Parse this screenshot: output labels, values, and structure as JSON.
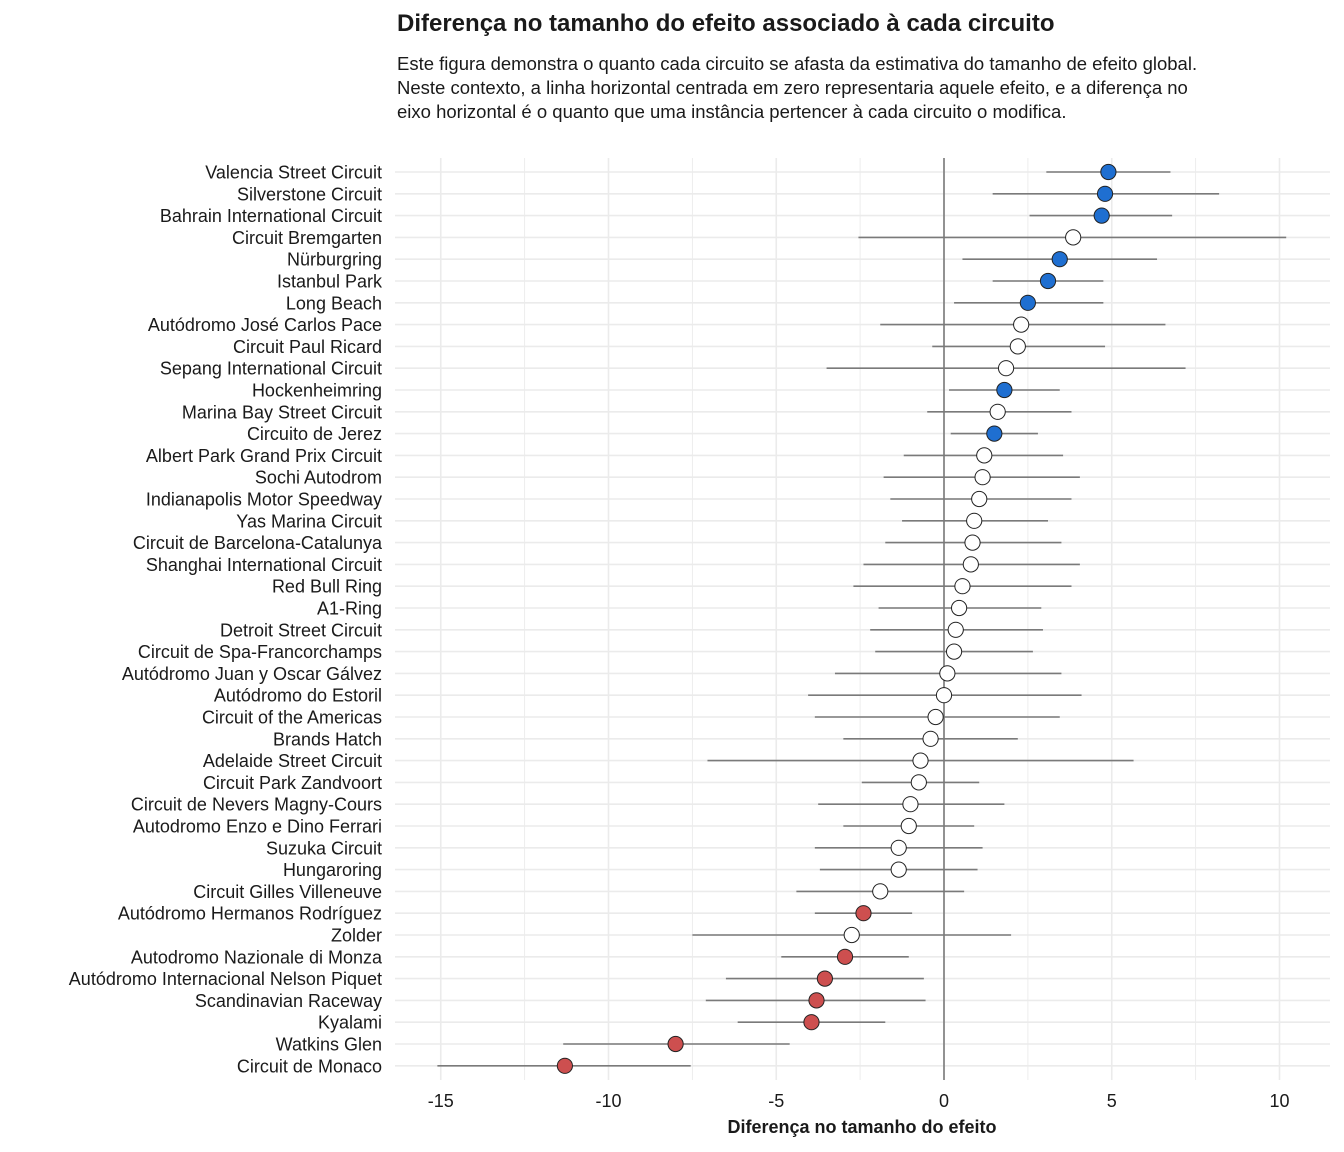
{
  "chart_data": {
    "type": "scatter",
    "title": "Diferença no tamanho do efeito associado à cada circuito",
    "subtitle": "Este figura demonstra o quanto cada circuito se afasta da estimativa do tamanho de efeito global. Neste contexto, a linha horizontal centrada em zero representaria aquele efeito, e a diferença no eixo horizontal é o quanto que uma instância pertencer à cada circuito o modifica.",
    "xlabel": "Diferença no tamanho do efeito",
    "ylabel": "",
    "xlim": [
      -16.5,
      11.5
    ],
    "xticks": [
      -15,
      -10,
      -5,
      0,
      5,
      10
    ],
    "reference_line_x": 0,
    "grid": true,
    "colors": {
      "positive": "#1f6fd1",
      "negative": "#cd4f4f",
      "neutral": "#ffffff",
      "interval": "#7a7a7a",
      "grid": "#ebebeb",
      "reference": "#7a7a7a"
    },
    "points": [
      {
        "label": "Valencia Street Circuit",
        "estimate": 4.9,
        "lower": 3.05,
        "upper": 6.75,
        "group": "positive"
      },
      {
        "label": "Silverstone Circuit",
        "estimate": 4.8,
        "lower": 1.45,
        "upper": 8.2,
        "group": "positive"
      },
      {
        "label": "Bahrain International Circuit",
        "estimate": 4.7,
        "lower": 2.55,
        "upper": 6.8,
        "group": "positive"
      },
      {
        "label": "Circuit Bremgarten",
        "estimate": 3.85,
        "lower": -2.55,
        "upper": 10.2,
        "group": "neutral"
      },
      {
        "label": "Nürburgring",
        "estimate": 3.45,
        "lower": 0.55,
        "upper": 6.35,
        "group": "positive"
      },
      {
        "label": "Istanbul Park",
        "estimate": 3.1,
        "lower": 1.45,
        "upper": 4.75,
        "group": "positive"
      },
      {
        "label": "Long Beach",
        "estimate": 2.5,
        "lower": 0.3,
        "upper": 4.75,
        "group": "positive"
      },
      {
        "label": "Autódromo José Carlos Pace",
        "estimate": 2.3,
        "lower": -1.9,
        "upper": 6.6,
        "group": "neutral"
      },
      {
        "label": "Circuit Paul Ricard",
        "estimate": 2.2,
        "lower": -0.35,
        "upper": 4.8,
        "group": "neutral"
      },
      {
        "label": "Sepang International Circuit",
        "estimate": 1.85,
        "lower": -3.5,
        "upper": 7.2,
        "group": "neutral"
      },
      {
        "label": "Hockenheimring",
        "estimate": 1.8,
        "lower": 0.15,
        "upper": 3.45,
        "group": "positive"
      },
      {
        "label": "Marina Bay Street Circuit",
        "estimate": 1.6,
        "lower": -0.5,
        "upper": 3.8,
        "group": "neutral"
      },
      {
        "label": "Circuito de Jerez",
        "estimate": 1.5,
        "lower": 0.2,
        "upper": 2.8,
        "group": "positive"
      },
      {
        "label": "Albert Park Grand Prix Circuit",
        "estimate": 1.2,
        "lower": -1.2,
        "upper": 3.55,
        "group": "neutral"
      },
      {
        "label": "Sochi Autodrom",
        "estimate": 1.15,
        "lower": -1.8,
        "upper": 4.05,
        "group": "neutral"
      },
      {
        "label": "Indianapolis Motor Speedway",
        "estimate": 1.05,
        "lower": -1.6,
        "upper": 3.8,
        "group": "neutral"
      },
      {
        "label": "Yas Marina Circuit",
        "estimate": 0.9,
        "lower": -1.25,
        "upper": 3.1,
        "group": "neutral"
      },
      {
        "label": "Circuit de Barcelona-Catalunya",
        "estimate": 0.85,
        "lower": -1.75,
        "upper": 3.5,
        "group": "neutral"
      },
      {
        "label": "Shanghai International Circuit",
        "estimate": 0.8,
        "lower": -2.4,
        "upper": 4.05,
        "group": "neutral"
      },
      {
        "label": "Red Bull Ring",
        "estimate": 0.55,
        "lower": -2.7,
        "upper": 3.8,
        "group": "neutral"
      },
      {
        "label": "A1-Ring",
        "estimate": 0.45,
        "lower": -1.95,
        "upper": 2.9,
        "group": "neutral"
      },
      {
        "label": "Detroit Street Circuit",
        "estimate": 0.35,
        "lower": -2.2,
        "upper": 2.95,
        "group": "neutral"
      },
      {
        "label": "Circuit de Spa-Francorchamps",
        "estimate": 0.3,
        "lower": -2.05,
        "upper": 2.65,
        "group": "neutral"
      },
      {
        "label": "Autódromo Juan y Oscar Gálvez",
        "estimate": 0.1,
        "lower": -3.25,
        "upper": 3.5,
        "group": "neutral"
      },
      {
        "label": "Autódromo do Estoril",
        "estimate": 0.0,
        "lower": -4.05,
        "upper": 4.1,
        "group": "neutral"
      },
      {
        "label": "Circuit of the Americas",
        "estimate": -0.25,
        "lower": -3.85,
        "upper": 3.45,
        "group": "neutral"
      },
      {
        "label": "Brands Hatch",
        "estimate": -0.4,
        "lower": -3.0,
        "upper": 2.2,
        "group": "neutral"
      },
      {
        "label": "Adelaide Street Circuit",
        "estimate": -0.7,
        "lower": -7.05,
        "upper": 5.65,
        "group": "neutral"
      },
      {
        "label": "Circuit Park Zandvoort",
        "estimate": -0.75,
        "lower": -2.45,
        "upper": 1.05,
        "group": "neutral"
      },
      {
        "label": "Circuit de Nevers Magny-Cours",
        "estimate": -1.0,
        "lower": -3.75,
        "upper": 1.8,
        "group": "neutral"
      },
      {
        "label": "Autodromo Enzo e Dino Ferrari",
        "estimate": -1.05,
        "lower": -3.0,
        "upper": 0.9,
        "group": "neutral"
      },
      {
        "label": "Suzuka Circuit",
        "estimate": -1.35,
        "lower": -3.85,
        "upper": 1.15,
        "group": "neutral"
      },
      {
        "label": "Hungaroring",
        "estimate": -1.35,
        "lower": -3.7,
        "upper": 1.0,
        "group": "neutral"
      },
      {
        "label": "Circuit Gilles Villeneuve",
        "estimate": -1.9,
        "lower": -4.4,
        "upper": 0.6,
        "group": "neutral"
      },
      {
        "label": "Autódromo Hermanos Rodríguez",
        "estimate": -2.4,
        "lower": -3.85,
        "upper": -0.95,
        "group": "negative"
      },
      {
        "label": "Zolder",
        "estimate": -2.75,
        "lower": -7.5,
        "upper": 2.0,
        "group": "neutral"
      },
      {
        "label": "Autodromo Nazionale di Monza",
        "estimate": -2.95,
        "lower": -4.85,
        "upper": -1.05,
        "group": "negative"
      },
      {
        "label": "Autódromo Internacional Nelson Piquet",
        "estimate": -3.55,
        "lower": -6.5,
        "upper": -0.6,
        "group": "negative"
      },
      {
        "label": "Scandinavian Raceway",
        "estimate": -3.8,
        "lower": -7.1,
        "upper": -0.55,
        "group": "negative"
      },
      {
        "label": "Kyalami",
        "estimate": -3.95,
        "lower": -6.15,
        "upper": -1.75,
        "group": "negative"
      },
      {
        "label": "Watkins Glen",
        "estimate": -8.0,
        "lower": -11.35,
        "upper": -4.6,
        "group": "negative"
      },
      {
        "label": "Circuit de Monaco",
        "estimate": -11.3,
        "lower": -15.1,
        "upper": -7.55,
        "group": "negative"
      }
    ]
  }
}
